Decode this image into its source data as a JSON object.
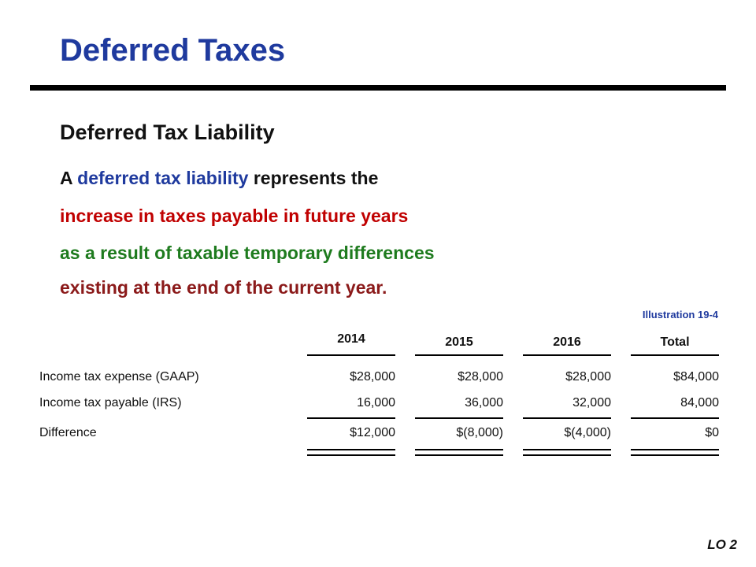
{
  "slide": {
    "title": "Deferred Taxes",
    "subtitle": "Deferred Tax Liability",
    "definition": {
      "line1_prefix": "A ",
      "line1_term": "deferred tax liability",
      "line1_suffix": " represents the",
      "line2": "increase in taxes payable in future years",
      "line3": "as a result of taxable temporary differences",
      "line4": "existing at the end of the current year."
    },
    "colors": {
      "title": "#1f3a9e",
      "term": "#1f3a9e",
      "line2": "#c00000",
      "line3": "#1e7b1e",
      "line4": "#8b1a1a"
    },
    "illustration_label": "Illustration 19-4",
    "lo_label": "LO 2"
  },
  "table": {
    "columns": [
      "2014",
      "2015",
      "2016",
      "Total"
    ],
    "rows": [
      {
        "label": "Income tax expense (GAAP)",
        "values": [
          "$28,000",
          "$28,000",
          "$28,000",
          "$84,000"
        ]
      },
      {
        "label": "Income tax payable (IRS)",
        "values": [
          "16,000",
          "36,000",
          "32,000",
          "84,000"
        ]
      },
      {
        "label": "Difference",
        "values": [
          "$12,000",
          "$(8,000)",
          "$(4,000)",
          "$0"
        ]
      }
    ]
  }
}
